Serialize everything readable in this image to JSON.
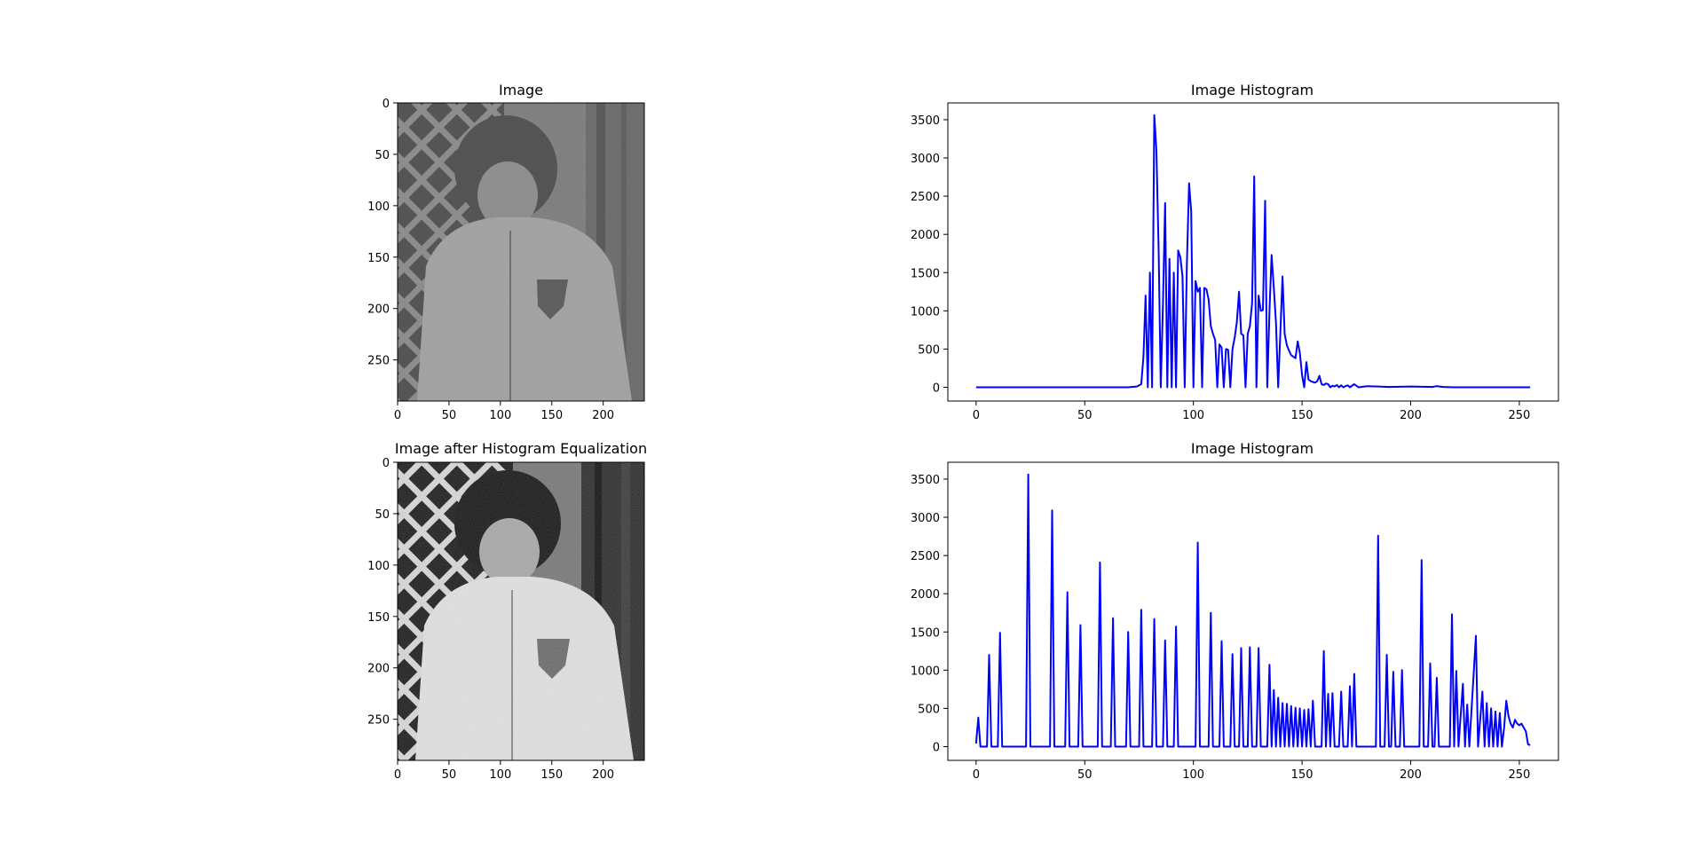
{
  "figure": {
    "panels": [
      {
        "title": "Image"
      },
      {
        "title": "Image Histogram"
      },
      {
        "title": "Image after Histogram Equalization"
      },
      {
        "title": "Image Histogram"
      }
    ]
  },
  "chart_data": [
    {
      "type": "image",
      "title": "Image",
      "content": "grayscale photo, low contrast",
      "image_size": [
        240,
        290
      ],
      "xticks": [
        0,
        50,
        100,
        150,
        200
      ],
      "yticks": [
        0,
        50,
        100,
        150,
        200,
        250
      ]
    },
    {
      "type": "line",
      "title": "Image Histogram",
      "xlim": [
        -13,
        268
      ],
      "ylim": [
        -180,
        3720
      ],
      "xticks": [
        0,
        50,
        100,
        150,
        200,
        250
      ],
      "yticks": [
        0,
        500,
        1000,
        1500,
        2000,
        2500,
        3000,
        3500
      ],
      "line_color": "#0000ff",
      "series": [
        {
          "points": [
            [
              0,
              0
            ],
            [
              70,
              0
            ],
            [
              74,
              10
            ],
            [
              76,
              40
            ],
            [
              77,
              400
            ],
            [
              78,
              1200
            ],
            [
              79,
              0
            ],
            [
              80,
              1500
            ],
            [
              81,
              0
            ],
            [
              82,
              3560
            ],
            [
              83,
              3100
            ],
            [
              84,
              1800
            ],
            [
              85,
              0
            ],
            [
              86,
              1100
            ],
            [
              87,
              2410
            ],
            [
              88,
              0
            ],
            [
              89,
              1680
            ],
            [
              90,
              0
            ],
            [
              91,
              1500
            ],
            [
              92,
              0
            ],
            [
              93,
              1790
            ],
            [
              94,
              1700
            ],
            [
              95,
              1450
            ],
            [
              96,
              0
            ],
            [
              97,
              1600
            ],
            [
              98,
              2670
            ],
            [
              99,
              2300
            ],
            [
              100,
              0
            ],
            [
              101,
              1390
            ],
            [
              102,
              1250
            ],
            [
              103,
              1300
            ],
            [
              104,
              0
            ],
            [
              105,
              1300
            ],
            [
              106,
              1280
            ],
            [
              107,
              1150
            ],
            [
              108,
              800
            ],
            [
              109,
              700
            ],
            [
              110,
              620
            ],
            [
              111,
              0
            ],
            [
              112,
              560
            ],
            [
              113,
              520
            ],
            [
              114,
              0
            ],
            [
              115,
              500
            ],
            [
              116,
              490
            ],
            [
              117,
              0
            ],
            [
              118,
              500
            ],
            [
              119,
              650
            ],
            [
              120,
              850
            ],
            [
              121,
              1250
            ],
            [
              122,
              700
            ],
            [
              123,
              680
            ],
            [
              124,
              0
            ],
            [
              125,
              700
            ],
            [
              126,
              800
            ],
            [
              127,
              1100
            ],
            [
              128,
              2760
            ],
            [
              129,
              0
            ],
            [
              130,
              1200
            ],
            [
              131,
              1000
            ],
            [
              132,
              1010
            ],
            [
              133,
              2440
            ],
            [
              134,
              0
            ],
            [
              135,
              1000
            ],
            [
              136,
              1730
            ],
            [
              137,
              1300
            ],
            [
              138,
              850
            ],
            [
              139,
              0
            ],
            [
              140,
              700
            ],
            [
              141,
              1450
            ],
            [
              142,
              700
            ],
            [
              143,
              550
            ],
            [
              144,
              480
            ],
            [
              145,
              420
            ],
            [
              146,
              400
            ],
            [
              147,
              380
            ],
            [
              148,
              600
            ],
            [
              149,
              450
            ],
            [
              150,
              160
            ],
            [
              151,
              0
            ],
            [
              152,
              330
            ],
            [
              153,
              100
            ],
            [
              154,
              80
            ],
            [
              155,
              70
            ],
            [
              156,
              60
            ],
            [
              157,
              80
            ],
            [
              158,
              150
            ],
            [
              159,
              40
            ],
            [
              160,
              30
            ],
            [
              161,
              50
            ],
            [
              162,
              40
            ],
            [
              163,
              0
            ],
            [
              164,
              20
            ],
            [
              165,
              10
            ],
            [
              166,
              30
            ],
            [
              167,
              0
            ],
            [
              168,
              25
            ],
            [
              169,
              0
            ],
            [
              170,
              15
            ],
            [
              171,
              25
            ],
            [
              172,
              0
            ],
            [
              174,
              40
            ],
            [
              176,
              0
            ],
            [
              180,
              15
            ],
            [
              185,
              10
            ],
            [
              190,
              5
            ],
            [
              200,
              10
            ],
            [
              210,
              5
            ],
            [
              212,
              15
            ],
            [
              215,
              5
            ],
            [
              220,
              0
            ],
            [
              230,
              0
            ],
            [
              255,
              0
            ]
          ]
        }
      ]
    },
    {
      "type": "image",
      "title": "Image after Histogram Equalization",
      "content": "grayscale photo, high contrast",
      "image_size": [
        240,
        290
      ],
      "xticks": [
        0,
        50,
        100,
        150,
        200
      ],
      "yticks": [
        0,
        50,
        100,
        150,
        200,
        250
      ]
    },
    {
      "type": "line",
      "title": "Image Histogram",
      "xlim": [
        -13,
        268
      ],
      "ylim": [
        -180,
        3720
      ],
      "xticks": [
        0,
        50,
        100,
        150,
        200,
        250
      ],
      "yticks": [
        0,
        500,
        1000,
        1500,
        2000,
        2500,
        3000,
        3500
      ],
      "line_color": "#0000ff",
      "series": [
        {
          "points": [
            [
              0,
              40
            ],
            [
              1,
              380
            ],
            [
              2,
              0
            ],
            [
              5,
              0
            ],
            [
              6,
              1200
            ],
            [
              7,
              0
            ],
            [
              10,
              0
            ],
            [
              11,
              1490
            ],
            [
              12,
              0
            ],
            [
              23,
              0
            ],
            [
              24,
              3560
            ],
            [
              25,
              0
            ],
            [
              34,
              0
            ],
            [
              35,
              3090
            ],
            [
              36,
              0
            ],
            [
              41,
              0
            ],
            [
              42,
              2020
            ],
            [
              43,
              0
            ],
            [
              47,
              0
            ],
            [
              48,
              1590
            ],
            [
              49,
              0
            ],
            [
              56,
              0
            ],
            [
              57,
              2410
            ],
            [
              58,
              0
            ],
            [
              62,
              0
            ],
            [
              63,
              1680
            ],
            [
              64,
              0
            ],
            [
              69,
              0
            ],
            [
              70,
              1500
            ],
            [
              71,
              0
            ],
            [
              75,
              0
            ],
            [
              76,
              1790
            ],
            [
              77,
              0
            ],
            [
              81,
              0
            ],
            [
              82,
              1670
            ],
            [
              83,
              0
            ],
            [
              86,
              0
            ],
            [
              87,
              1390
            ],
            [
              88,
              0
            ],
            [
              91,
              0
            ],
            [
              92,
              1570
            ],
            [
              93,
              0
            ],
            [
              101,
              0
            ],
            [
              102,
              2670
            ],
            [
              103,
              0
            ],
            [
              107,
              0
            ],
            [
              108,
              1750
            ],
            [
              109,
              0
            ],
            [
              112,
              0
            ],
            [
              113,
              1380
            ],
            [
              114,
              0
            ],
            [
              117,
              0
            ],
            [
              118,
              1210
            ],
            [
              119,
              0
            ],
            [
              121,
              0
            ],
            [
              122,
              1290
            ],
            [
              123,
              0
            ],
            [
              125,
              0
            ],
            [
              126,
              1300
            ],
            [
              127,
              0
            ],
            [
              129,
              0
            ],
            [
              130,
              1290
            ],
            [
              131,
              0
            ],
            [
              134,
              0
            ],
            [
              135,
              1070
            ],
            [
              136,
              0
            ],
            [
              137,
              740
            ],
            [
              138,
              0
            ],
            [
              139,
              640
            ],
            [
              140,
              0
            ],
            [
              141,
              570
            ],
            [
              142,
              0
            ],
            [
              143,
              560
            ],
            [
              144,
              0
            ],
            [
              145,
              530
            ],
            [
              146,
              0
            ],
            [
              147,
              510
            ],
            [
              148,
              0
            ],
            [
              149,
              500
            ],
            [
              150,
              0
            ],
            [
              151,
              480
            ],
            [
              152,
              0
            ],
            [
              153,
              490
            ],
            [
              154,
              0
            ],
            [
              155,
              600
            ],
            [
              156,
              0
            ],
            [
              159,
              0
            ],
            [
              160,
              1250
            ],
            [
              161,
              0
            ],
            [
              162,
              690
            ],
            [
              163,
              0
            ],
            [
              164,
              700
            ],
            [
              165,
              0
            ],
            [
              167,
              0
            ],
            [
              168,
              720
            ],
            [
              169,
              0
            ],
            [
              171,
              0
            ],
            [
              172,
              790
            ],
            [
              173,
              0
            ],
            [
              174,
              950
            ],
            [
              175,
              0
            ],
            [
              184,
              0
            ],
            [
              185,
              2760
            ],
            [
              186,
              0
            ],
            [
              188,
              0
            ],
            [
              189,
              1200
            ],
            [
              190,
              0
            ],
            [
              191,
              0
            ],
            [
              192,
              980
            ],
            [
              193,
              0
            ],
            [
              195,
              0
            ],
            [
              196,
              1000
            ],
            [
              197,
              0
            ],
            [
              204,
              0
            ],
            [
              205,
              2440
            ],
            [
              206,
              0
            ],
            [
              208,
              0
            ],
            [
              209,
              1090
            ],
            [
              210,
              0
            ],
            [
              211,
              0
            ],
            [
              212,
              900
            ],
            [
              213,
              0
            ],
            [
              218,
              0
            ],
            [
              219,
              1730
            ],
            [
              220,
              0
            ],
            [
              221,
              990
            ],
            [
              222,
              0
            ],
            [
              224,
              820
            ],
            [
              225,
              0
            ],
            [
              226,
              550
            ],
            [
              227,
              0
            ],
            [
              230,
              1450
            ],
            [
              231,
              0
            ],
            [
              233,
              720
            ],
            [
              234,
              0
            ],
            [
              235,
              570
            ],
            [
              236,
              0
            ],
            [
              237,
              500
            ],
            [
              238,
              0
            ],
            [
              239,
              460
            ],
            [
              240,
              0
            ],
            [
              241,
              440
            ],
            [
              242,
              0
            ],
            [
              243,
              250
            ],
            [
              244,
              600
            ],
            [
              245,
              400
            ],
            [
              246,
              300
            ],
            [
              247,
              250
            ],
            [
              248,
              350
            ],
            [
              249,
              300
            ],
            [
              250,
              280
            ],
            [
              251,
              300
            ],
            [
              252,
              250
            ],
            [
              253,
              200
            ],
            [
              254,
              30
            ],
            [
              255,
              20
            ]
          ]
        }
      ]
    }
  ]
}
